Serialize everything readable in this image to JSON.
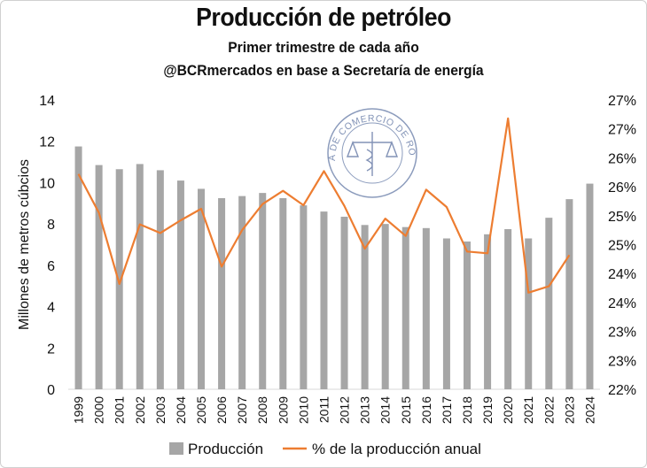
{
  "chart_data": {
    "type": "bar+line",
    "title": "Producción de petróleo",
    "subtitle_1": "Primer trimestre de cada año",
    "subtitle_2": "@BCRmercados en base a Secretaría de energía",
    "ylabel": "Millones de metros cúbcios",
    "categories": [
      "1999",
      "2000",
      "2001",
      "2002",
      "2003",
      "2004",
      "2005",
      "2006",
      "2007",
      "2008",
      "2009",
      "2010",
      "2011",
      "2012",
      "2013",
      "2014",
      "2015",
      "2016",
      "2017",
      "2018",
      "2019",
      "2020",
      "2021",
      "2022",
      "2023",
      "2024"
    ],
    "series": [
      {
        "name": "Producción",
        "type": "bar",
        "color": "#a6a6a6",
        "axis": "left",
        "values": [
          11.75,
          10.85,
          10.65,
          10.9,
          10.6,
          10.1,
          9.7,
          9.25,
          9.35,
          9.5,
          9.25,
          8.9,
          8.6,
          8.35,
          7.95,
          8.0,
          7.85,
          7.8,
          7.3,
          7.15,
          7.5,
          7.75,
          7.3,
          8.3,
          9.2,
          9.95
        ]
      },
      {
        "name": "% de la producción anual",
        "type": "line",
        "color": "#ed7d31",
        "axis": "right",
        "values": [
          25.72,
          25.05,
          23.82,
          24.85,
          24.7,
          24.92,
          25.12,
          24.12,
          24.75,
          25.2,
          25.43,
          25.18,
          25.77,
          25.17,
          24.43,
          24.95,
          24.65,
          25.45,
          25.15,
          24.38,
          24.35,
          26.68,
          23.67,
          23.78,
          24.32,
          null
        ]
      }
    ],
    "ylim_left": [
      0,
      14
    ],
    "yticks_left": [
      "0",
      "2",
      "4",
      "6",
      "8",
      "10",
      "12",
      "14"
    ],
    "ylim_right": [
      22,
      27
    ],
    "yticks_right": [
      "22%",
      "23%",
      "23%",
      "24%",
      "24%",
      "25%",
      "25%",
      "26%",
      "26%",
      "27%",
      "27%"
    ],
    "legend": {
      "position": "bottom"
    },
    "annotations": {
      "logo_text": "BOLSA DE COMERCIO DE ROSARIO"
    }
  },
  "colors": {
    "bar": "#a6a6a6",
    "line": "#ed7d31",
    "axis": "#d9d9d9",
    "text": "#111111",
    "logo": "#2e4a86"
  }
}
